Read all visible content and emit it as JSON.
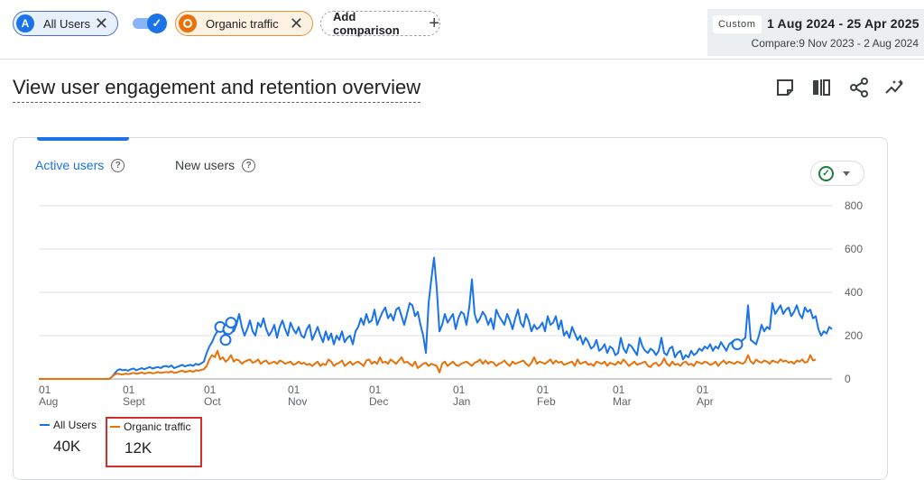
{
  "segments": {
    "all_users": {
      "badge": "A",
      "label": "All Users",
      "color": "#1a73e8"
    },
    "organic": {
      "label": "Organic traffic",
      "color": "#e8710a"
    },
    "add_comparison": "Add comparison"
  },
  "date_range": {
    "tag": "Custom",
    "range": "1 Aug 2024 - 25 Apr 2025",
    "compare": "Compare:9 Nov 2023 - 2 Aug 2024"
  },
  "page": {
    "title": "View user engagement and retention overview"
  },
  "toolbar_icons": [
    "note-icon",
    "compare-columns-icon",
    "share-icon",
    "insights-icon"
  ],
  "card": {
    "tabs": [
      {
        "label": "Active users",
        "active": true
      },
      {
        "label": "New users",
        "active": false
      }
    ]
  },
  "legend": {
    "all_users": {
      "label": "All Users",
      "value": "40K"
    },
    "organic": {
      "label": "Organic traffic",
      "value": "12K"
    }
  },
  "chart_data": {
    "type": "line",
    "y_ticks": [
      "800",
      "600",
      "400",
      "200",
      "0"
    ],
    "ylim": [
      0,
      800
    ],
    "x_ticks": [
      {
        "day": "01",
        "month": "Aug"
      },
      {
        "day": "01",
        "month": "Sept"
      },
      {
        "day": "01",
        "month": "Oct"
      },
      {
        "day": "01",
        "month": "Nov"
      },
      {
        "day": "01",
        "month": "Dec"
      },
      {
        "day": "01",
        "month": "Jan"
      },
      {
        "day": "01",
        "month": "Feb"
      },
      {
        "day": "01",
        "month": "Mar"
      },
      {
        "day": "01",
        "month": "Apr"
      }
    ],
    "grid": true,
    "series": [
      {
        "name": "All Users",
        "color": "#1a73e8",
        "values": [
          0,
          0,
          0,
          0,
          0,
          0,
          0,
          0,
          0,
          0,
          0,
          0,
          0,
          0,
          0,
          0,
          0,
          0,
          0,
          0,
          0,
          0,
          0,
          0,
          0,
          0,
          0,
          10,
          25,
          40,
          45,
          40,
          42,
          38,
          45,
          48,
          40,
          45,
          50,
          45,
          50,
          55,
          48,
          52,
          55,
          50,
          58,
          60,
          55,
          62,
          50,
          55,
          60,
          65,
          58,
          62,
          65,
          60,
          70,
          65,
          72,
          80,
          120,
          150,
          170,
          200,
          220,
          240,
          250,
          180,
          230,
          260,
          220,
          250,
          300,
          240,
          200,
          230,
          270,
          220,
          200,
          260,
          240,
          280,
          230,
          200,
          220,
          250,
          190,
          240,
          270,
          230,
          200,
          260,
          230,
          210,
          240,
          200,
          190,
          230,
          250,
          180,
          210,
          240,
          200,
          170,
          220,
          180,
          210,
          160,
          200,
          180,
          220,
          170,
          190,
          200,
          160,
          220,
          240,
          280,
          250,
          300,
          260,
          270,
          320,
          250,
          280,
          310,
          330,
          280,
          300,
          270,
          320,
          330,
          290,
          250,
          300,
          350,
          340,
          290,
          310,
          250,
          200,
          120,
          350,
          460,
          560,
          420,
          220,
          250,
          300,
          260,
          280,
          300,
          230,
          280,
          310,
          300,
          250,
          330,
          460,
          300,
          260,
          280,
          310,
          290,
          250,
          280,
          230,
          320,
          290,
          270,
          250,
          300,
          270,
          230,
          280,
          320,
          260,
          240,
          300,
          270,
          220,
          250,
          230,
          240,
          260,
          220,
          290,
          250,
          260,
          290,
          230,
          270,
          200,
          220,
          190,
          240,
          210,
          180,
          200,
          160,
          190,
          170,
          140,
          150,
          180,
          130,
          140,
          160,
          120,
          150,
          140,
          110,
          120,
          190,
          140,
          120,
          160,
          150,
          130,
          110,
          190,
          150,
          130,
          120,
          140,
          130,
          110,
          130,
          190,
          120,
          110,
          140,
          150,
          100,
          120,
          130,
          90,
          110,
          100,
          130,
          110,
          120,
          140,
          130,
          150,
          140,
          160,
          130,
          150,
          140,
          170,
          150,
          130,
          160,
          170,
          180,
          160,
          170,
          180,
          190,
          340,
          180,
          170,
          160,
          200,
          250,
          220,
          240,
          230,
          350,
          300,
          320,
          340,
          300,
          320,
          330,
          290,
          310,
          340,
          300,
          280,
          330,
          310,
          320,
          280,
          290,
          230,
          200,
          220,
          210,
          240,
          230
        ],
        "markers": [
          67,
          69,
          70,
          71,
          258
        ]
      },
      {
        "name": "Organic traffic",
        "color": "#e8710a",
        "values": [
          0,
          0,
          0,
          0,
          0,
          0,
          0,
          0,
          0,
          0,
          0,
          0,
          0,
          0,
          0,
          0,
          0,
          0,
          0,
          0,
          0,
          0,
          0,
          0,
          0,
          0,
          0,
          10,
          20,
          25,
          22,
          20,
          25,
          22,
          25,
          28,
          24,
          26,
          30,
          25,
          28,
          30,
          26,
          28,
          32,
          28,
          30,
          32,
          30,
          35,
          28,
          30,
          35,
          38,
          32,
          35,
          38,
          32,
          40,
          38,
          42,
          45,
          60,
          90,
          110,
          100,
          130,
          90,
          100,
          80,
          90,
          110,
          80,
          90,
          85,
          70,
          80,
          85,
          90,
          75,
          80,
          90,
          70,
          80,
          85,
          70,
          75,
          80,
          70,
          85,
          80,
          70,
          75,
          80,
          65,
          70,
          80,
          70,
          75,
          65,
          70,
          60,
          70,
          80,
          60,
          70,
          65,
          90,
          80,
          60,
          70,
          75,
          85,
          60,
          70,
          80,
          65,
          75,
          80,
          70,
          60,
          85,
          90,
          70,
          80,
          70,
          100,
          75,
          80,
          70,
          90,
          80,
          70,
          85,
          100,
          75,
          80,
          70,
          60,
          80,
          50,
          60,
          70,
          75,
          60,
          70,
          65,
          60,
          30,
          70,
          80,
          60,
          70,
          80,
          65,
          60,
          70,
          75,
          80,
          70,
          60,
          75,
          80,
          90,
          70,
          85,
          70,
          80,
          75,
          60,
          70,
          75,
          85,
          70,
          60,
          80,
          70,
          75,
          80,
          85,
          70,
          60,
          75,
          100,
          70,
          80,
          75,
          70,
          80,
          90,
          70,
          85,
          75,
          80,
          65,
          70,
          75,
          80,
          60,
          90,
          70,
          75,
          80,
          65,
          70,
          60,
          80,
          75,
          70,
          80,
          60,
          75,
          70,
          65,
          80,
          70,
          90,
          75,
          60,
          70,
          80,
          65,
          70,
          75,
          80,
          60,
          55,
          70,
          75,
          60,
          70,
          95,
          70,
          60,
          80,
          65,
          70,
          60,
          75,
          80,
          65,
          70,
          60,
          80,
          75,
          70,
          80,
          75,
          65,
          70,
          80,
          60,
          75,
          85,
          70,
          80,
          75,
          70,
          80,
          75,
          70,
          80,
          110,
          80,
          70,
          90,
          80,
          75,
          85,
          80,
          70,
          85,
          80,
          75,
          90,
          80,
          85,
          75,
          80,
          70,
          85,
          80,
          90,
          75,
          80,
          110,
          85,
          90
        ]
      }
    ]
  }
}
